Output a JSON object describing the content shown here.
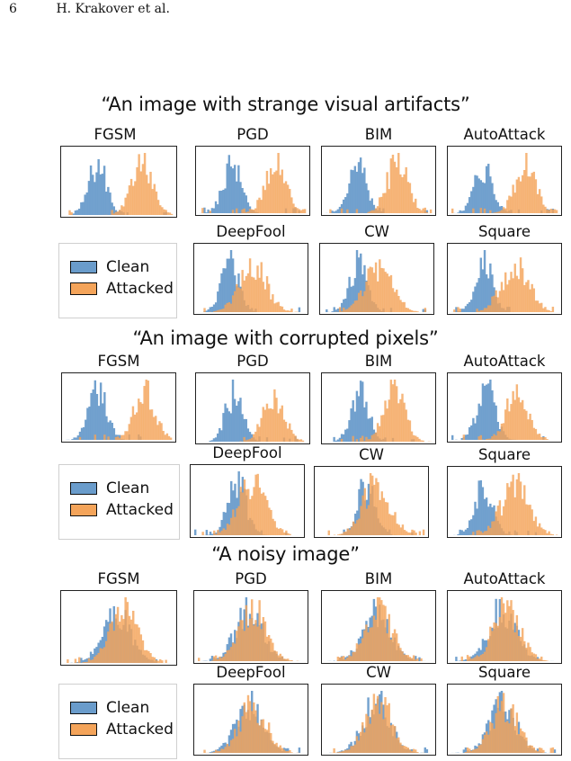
{
  "header": {
    "page_number": "6",
    "authors": "H. Krakover et al."
  },
  "legend": {
    "clean": "Clean",
    "attacked": "Attacked"
  },
  "colors": {
    "clean": "#6a9ccb",
    "attacked": "#f4a45a"
  },
  "sections": [
    {
      "title": "“An image with strange visual artifacts”",
      "panels": [
        {
          "label": "FGSM",
          "mode": "separated",
          "cmean": 0.3,
          "amean": 0.72
        },
        {
          "label": "PGD",
          "mode": "separated",
          "cmean": 0.3,
          "amean": 0.72
        },
        {
          "label": "BIM",
          "mode": "separated",
          "cmean": 0.3,
          "amean": 0.68
        },
        {
          "label": "AutoAttack",
          "mode": "separated",
          "cmean": 0.3,
          "amean": 0.7
        },
        {
          "label": "DeepFool",
          "mode": "partial",
          "cmean": 0.3,
          "amean": 0.52
        },
        {
          "label": "CW",
          "mode": "partial",
          "cmean": 0.32,
          "amean": 0.52
        },
        {
          "label": "Square",
          "mode": "partial",
          "cmean": 0.3,
          "amean": 0.6
        }
      ]
    },
    {
      "title": "“An image with corrupted pixels”",
      "panels": [
        {
          "label": "FGSM",
          "mode": "separated",
          "cmean": 0.3,
          "amean": 0.75
        },
        {
          "label": "PGD",
          "mode": "separated",
          "cmean": 0.32,
          "amean": 0.7
        },
        {
          "label": "BIM",
          "mode": "separated",
          "cmean": 0.32,
          "amean": 0.65
        },
        {
          "label": "AutoAttack",
          "mode": "separated",
          "cmean": 0.32,
          "amean": 0.62
        },
        {
          "label": "DeepFool",
          "mode": "partial",
          "cmean": 0.4,
          "amean": 0.55
        },
        {
          "label": "CW",
          "mode": "partial",
          "cmean": 0.45,
          "amean": 0.55
        },
        {
          "label": "Square",
          "mode": "partial",
          "cmean": 0.3,
          "amean": 0.6
        }
      ]
    },
    {
      "title": "“A noisy image”",
      "panels": [
        {
          "label": "FGSM",
          "mode": "overlap",
          "cmean": 0.48,
          "amean": 0.55
        },
        {
          "label": "PGD",
          "mode": "overlap",
          "cmean": 0.48,
          "amean": 0.52
        },
        {
          "label": "BIM",
          "mode": "overlap",
          "cmean": 0.48,
          "amean": 0.5
        },
        {
          "label": "AutoAttack",
          "mode": "overlap",
          "cmean": 0.48,
          "amean": 0.52
        },
        {
          "label": "DeepFool",
          "mode": "overlap",
          "cmean": 0.48,
          "amean": 0.52
        },
        {
          "label": "CW",
          "mode": "overlap",
          "cmean": 0.48,
          "amean": 0.5
        },
        {
          "label": "Square",
          "mode": "overlap",
          "cmean": 0.48,
          "amean": 0.5
        }
      ]
    }
  ]
}
